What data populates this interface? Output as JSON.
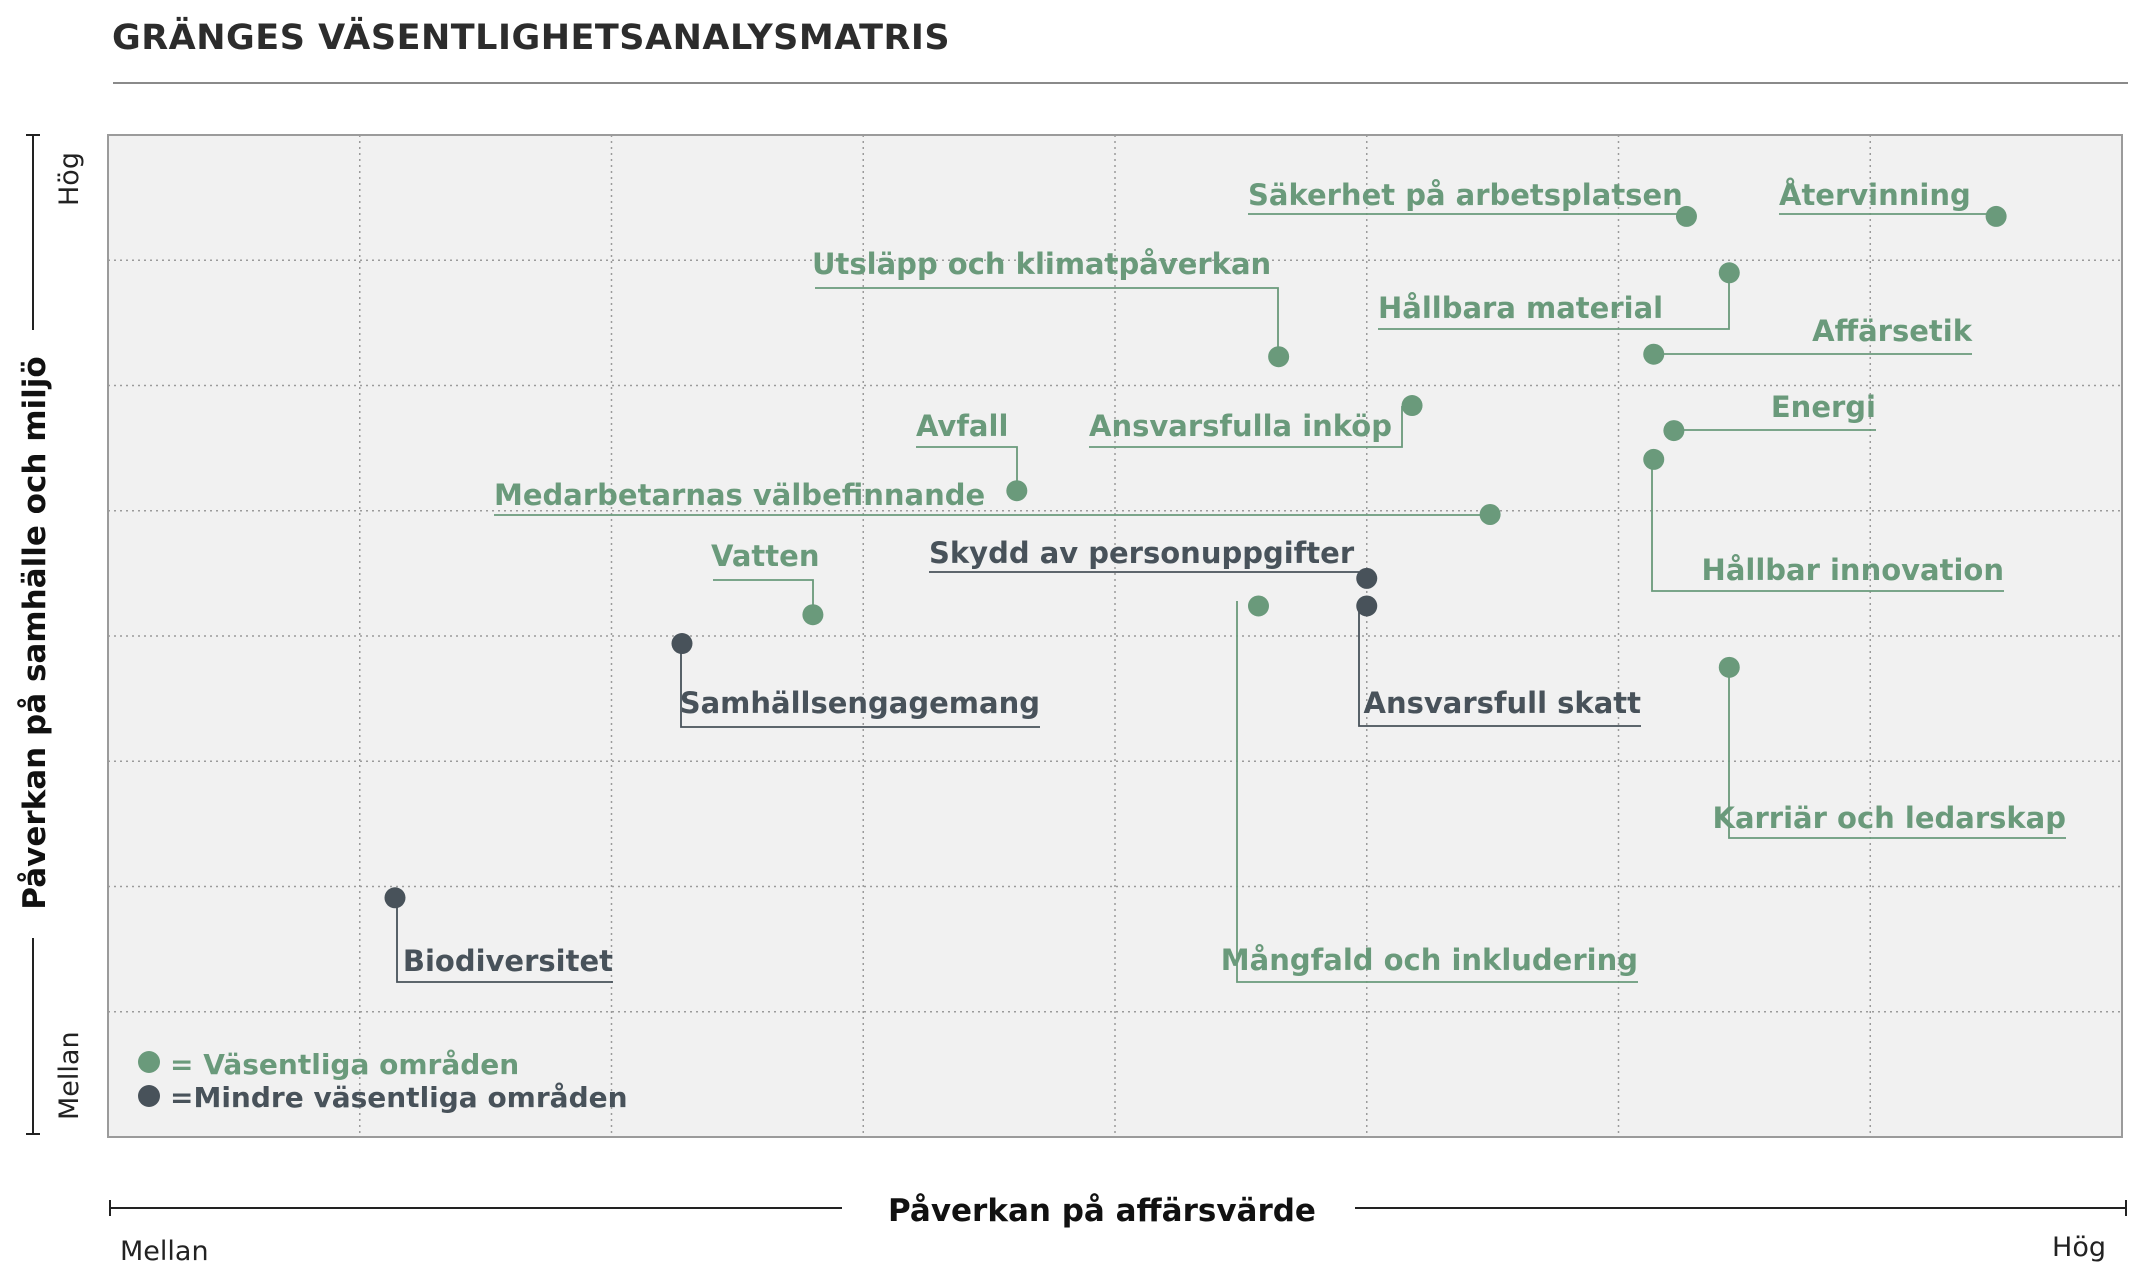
{
  "colors": {
    "material": "#6a9a7b",
    "less_material": "#48525a",
    "plot_bg": "#f1f1f1",
    "grid": "#9b9b9b",
    "frame": "#9b9b9b"
  },
  "chart_data": {
    "type": "scatter",
    "title": "GRÄNGES VÄSENTLIGHETSANALYSMATRIS",
    "xlabel": "Påverkan på affärsvärde",
    "ylabel": "Påverkan på samhälle och miljö",
    "x_ticks": [
      "Mellan",
      "Hög"
    ],
    "y_ticks": [
      "Mellan",
      "Hög"
    ],
    "xlim": [
      0,
      8
    ],
    "ylim": [
      0,
      8
    ],
    "grid": true,
    "legend_position": "bottom-left",
    "legend": [
      {
        "key": "material",
        "text": "= Väsentliga områden"
      },
      {
        "key": "less_material",
        "text": "=Mindre väsentliga områden"
      }
    ],
    "series": [
      {
        "key": "material",
        "points": [
          {
            "label": "Säkerhet på arbetsplatsen",
            "x": 6.27,
            "y": 7.35
          },
          {
            "label": "Återvinning",
            "x": 7.5,
            "y": 7.35
          },
          {
            "label": "Hållbara material",
            "x": 6.44,
            "y": 6.9
          },
          {
            "label": "Utsläpp och klimatpåverkan",
            "x": 4.65,
            "y": 6.23
          },
          {
            "label": "Affärsetik",
            "x": 6.14,
            "y": 6.25
          },
          {
            "label": "Ansvarsfulla inköp",
            "x": 5.18,
            "y": 5.84
          },
          {
            "label": "Energi",
            "x": 6.22,
            "y": 5.64
          },
          {
            "label": "Hållbar innovation",
            "x": 6.14,
            "y": 5.41
          },
          {
            "label": "Avfall",
            "x": 3.61,
            "y": 5.16
          },
          {
            "label": "Medarbetarnas välbefinnande",
            "x": 5.49,
            "y": 4.97
          },
          {
            "label": "Vatten",
            "x": 2.8,
            "y": 4.17
          },
          {
            "label": "Mångfald och inkludering",
            "x": 4.57,
            "y": 4.24
          },
          {
            "label": "Karriär och ledarskap",
            "x": 6.44,
            "y": 3.75
          }
        ]
      },
      {
        "key": "less_material",
        "points": [
          {
            "label": "Skydd av personuppgifter",
            "x": 5.0,
            "y": 4.46
          },
          {
            "label": "Ansvarsfull skatt",
            "x": 5.0,
            "y": 4.24
          },
          {
            "label": "Samhällsengagemang",
            "x": 2.28,
            "y": 3.94
          },
          {
            "label": "Biodiversitet",
            "x": 1.14,
            "y": 1.91
          }
        ]
      }
    ]
  }
}
